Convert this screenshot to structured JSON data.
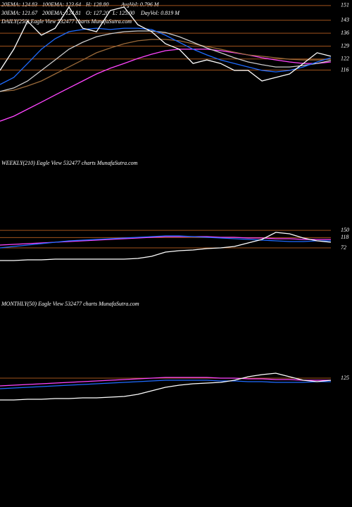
{
  "header": [
    [
      "20EMA: 124.83",
      "100EMA: 123.64",
      "H: 128.80",
      "AvgVol: 0.796 M"
    ],
    [
      "30EMA: 121.67",
      "200EMA: 124.81",
      "O: 127.20",
      "L: 125.00",
      "DayVol: 0.819 M"
    ]
  ],
  "chart_data": [
    {
      "type": "line",
      "title": "DAILY(250) Eagle  View 532477 charts MunafaSutra.com",
      "ylim": [
        70,
        154
      ],
      "yticks": [
        151,
        143,
        136,
        129,
        122,
        116
      ],
      "grid": true,
      "series": [
        {
          "color": "#ff44ff",
          "values": [
            88.3,
            91,
            94.8,
            98.6,
            102.5,
            106.3,
            110.1,
            113.9,
            117,
            119.6,
            122.3,
            124.6,
            126.5,
            127.3,
            127.3,
            127.3,
            126.5,
            125.4,
            124.2,
            122.7,
            121.5,
            120.4,
            119.6,
            119.6,
            120.4
          ]
        },
        {
          "color": "#9a6a3a",
          "values": [
            104.4,
            105.1,
            107.4,
            110.1,
            113.9,
            117.7,
            121.5,
            125.4,
            128,
            130.3,
            131.9,
            132.6,
            132.6,
            131.9,
            130.3,
            128.8,
            127.3,
            125.7,
            124.2,
            123.5,
            122.7,
            121.9,
            121.5,
            121.5,
            121.9
          ]
        },
        {
          "color": "#cccccc",
          "values": [
            104.4,
            106.3,
            110.1,
            115.8,
            121.5,
            127.3,
            131.1,
            134.1,
            135.7,
            136.8,
            137.2,
            137.2,
            136.4,
            134.1,
            131.1,
            128,
            125.4,
            122.7,
            120.4,
            118.9,
            117.7,
            117.7,
            118.5,
            119.6,
            121.2
          ]
        },
        {
          "color": "#1e6bff",
          "values": [
            108.2,
            112,
            119.6,
            127.3,
            133,
            136.8,
            138,
            138.7,
            138,
            138.7,
            138.7,
            138,
            134.9,
            131.1,
            127.3,
            124.2,
            121.5,
            119.6,
            117.7,
            115.8,
            115,
            115.8,
            117.7,
            120.4,
            122.7
          ]
        },
        {
          "color": "#ffffff",
          "values": [
            115.8,
            127.3,
            142.5,
            134.9,
            138.7,
            150.2,
            138.7,
            136.8,
            148.3,
            150.2,
            140.6,
            136.8,
            130.3,
            127.3,
            119.6,
            121.5,
            119.6,
            115.8,
            115.8,
            110.1,
            112,
            113.9,
            119.6,
            125.4,
            123.5
          ]
        }
      ]
    },
    {
      "type": "line",
      "title": "WEEKLY(210) Eagle  View 532477 charts MunafaSutra.com",
      "ylim": [
        16,
        453
      ],
      "yticks": [
        150,
        118,
        72
      ],
      "grid": true,
      "series": [
        {
          "color": "#ff44ff",
          "values": [
            84.7,
            87.9,
            91,
            94.1,
            97.2,
            100.3,
            103.4,
            106.6,
            109.7,
            112.8,
            115.9,
            119.1,
            122.2,
            122.2,
            122.2,
            122.2,
            119.1,
            119.1,
            115.9,
            115.9,
            112.8,
            112.8,
            109.7,
            109.7,
            109.7
          ]
        },
        {
          "color": "#1e6bff",
          "values": [
            72.2,
            78.5,
            84.7,
            91,
            97.2,
            103.4,
            106.6,
            109.7,
            112.8,
            115.9,
            119.1,
            122.2,
            125.3,
            125.3,
            122.2,
            119.1,
            115.9,
            112.8,
            109.7,
            106.6,
            103.4,
            100.3,
            100.3,
            103.4,
            103.4
          ]
        },
        {
          "color": "#ffffff",
          "values": [
            16,
            16,
            19.1,
            19.1,
            22.3,
            22.3,
            22.3,
            22.3,
            22.3,
            22.3,
            25.4,
            34.8,
            53.5,
            59.8,
            62.9,
            69.1,
            72.3,
            78.5,
            94.1,
            109.7,
            140.9,
            134.7,
            115.9,
            103.5,
            97.2
          ]
        }
      ]
    },
    {
      "type": "line",
      "title": "MONTHLY(50) Eagle  View 532477 charts MunafaSutra.com",
      "ylim": [
        0,
        530
      ],
      "yticks": [
        125
      ],
      "grid": true,
      "series": [
        {
          "color": "#ff44ff",
          "values": [
            83.3,
            87.1,
            90.9,
            94.6,
            98.4,
            102.2,
            106,
            109.8,
            113.6,
            117.4,
            121.1,
            124.9,
            128.7,
            128.7,
            128.7,
            128.7,
            124.9,
            124.9,
            121.1,
            121.1,
            117.4,
            117.4,
            113.6,
            113.6,
            113.6
          ]
        },
        {
          "color": "#1e6bff",
          "values": [
            68.1,
            71.9,
            75.7,
            79.5,
            83.3,
            87.1,
            90.9,
            94.6,
            98.4,
            102.2,
            106,
            109.8,
            113.6,
            113.6,
            113.6,
            113.6,
            109.8,
            109.8,
            106,
            106,
            102.2,
            102.2,
            102.2,
            106,
            106
          ]
        },
        {
          "color": "#ffffff",
          "values": [
            7.6,
            7.6,
            11.4,
            11.4,
            15.1,
            15.1,
            18.9,
            18.9,
            22.7,
            26.5,
            37.9,
            56.8,
            75.7,
            87.1,
            94.6,
            98.4,
            102.2,
            113.6,
            132.5,
            143.9,
            151.4,
            132.5,
            113.6,
            106,
            113.6
          ]
        }
      ]
    }
  ]
}
